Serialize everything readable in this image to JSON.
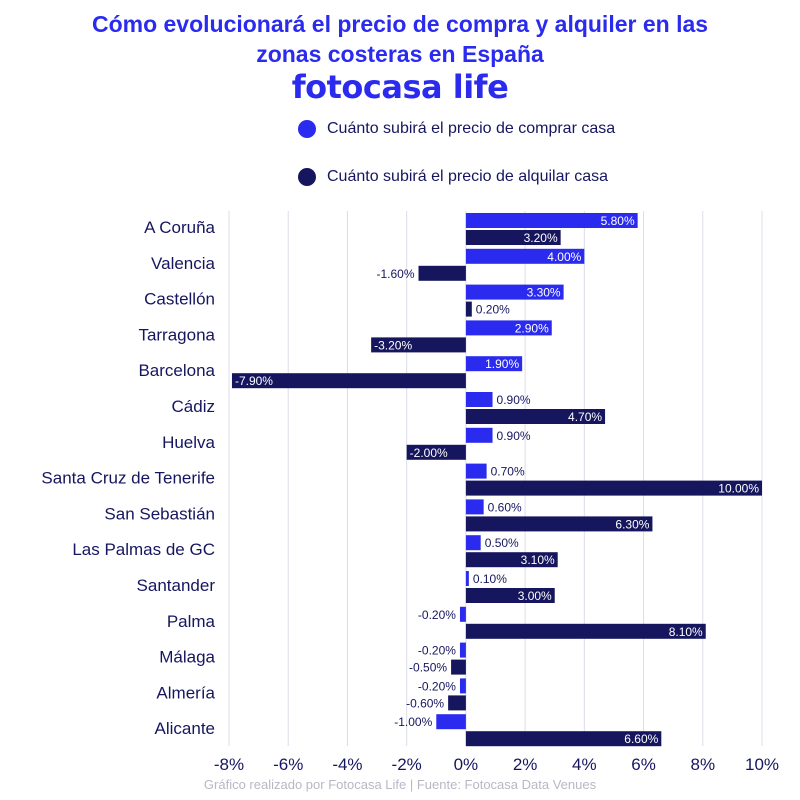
{
  "title_line1": "Cómo evolucionará el precio de compra y alquiler en las",
  "title_line2": "zonas costeras en España",
  "brand": "fotocasa life",
  "footer": "Gráfico realizado por Fotocasa Life | Fuente: Fotocasa Data Venues",
  "colors": {
    "comprar": "#2b2bef",
    "alquilar": "#16165e",
    "title": "#2b2bef",
    "text": "#161660",
    "grid": "#dcdce8"
  },
  "chart_data": {
    "type": "bar",
    "orientation": "horizontal",
    "categories": [
      "A Coruña",
      "Valencia",
      "Castellón",
      "Tarragona",
      "Barcelona",
      "Cádiz",
      "Huelva",
      "Santa Cruz de Tenerife",
      "San Sebastián",
      "Las Palmas de GC",
      "Santander",
      "Palma",
      "Málaga",
      "Almería",
      "Alicante"
    ],
    "series": [
      {
        "name": "Cuánto subirá el precio de comprar casa",
        "values": [
          5.8,
          4.0,
          3.3,
          2.9,
          1.9,
          0.9,
          0.9,
          0.7,
          0.6,
          0.5,
          0.1,
          -0.2,
          -0.2,
          -0.2,
          -1.0
        ],
        "labels": [
          "5.80%",
          "4.00%",
          "3.30%",
          "2.90%",
          "1.90%",
          "0.90%",
          "0.90%",
          "0.70%",
          "0.60%",
          "0.50%",
          "0.10%",
          "-0.20%",
          "-0.20%",
          "-0.20%",
          "-1.00%"
        ]
      },
      {
        "name": "Cuánto subirá el precio de alquilar casa",
        "values": [
          3.2,
          -1.6,
          0.2,
          -3.2,
          -7.9,
          4.7,
          -2.0,
          10.0,
          6.3,
          3.1,
          3.0,
          8.1,
          -0.5,
          -0.6,
          6.6
        ],
        "labels": [
          "3.20%",
          "-1.60%",
          "0.20%",
          "-3.20%",
          "-7.90%",
          "4.70%",
          "-2.00%",
          "10.00%",
          "6.30%",
          "3.10%",
          "3.00%",
          "8.10%",
          "-0.50%",
          "-0.60%",
          "6.60%"
        ]
      }
    ],
    "xlim": [
      -8,
      10
    ],
    "xticks": [
      "-8%",
      "-6%",
      "-4%",
      "-2%",
      "0%",
      "2%",
      "4%",
      "6%",
      "8%",
      "10%"
    ],
    "grid": true,
    "legend_position": "top"
  }
}
